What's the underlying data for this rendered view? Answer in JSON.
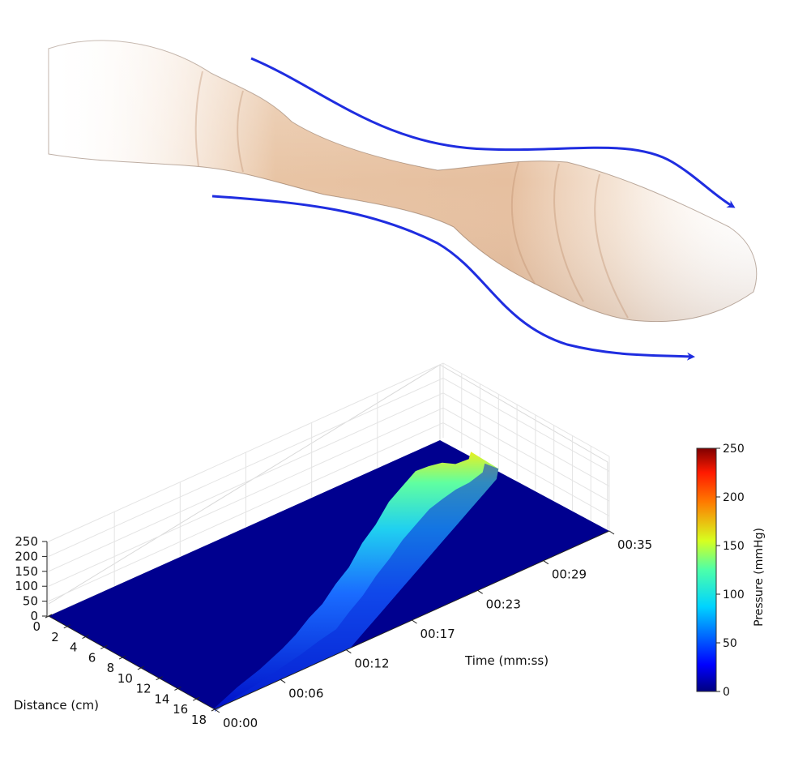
{
  "illustration": {
    "flow_color": "#1f2de0",
    "tissue_color": "#e9c7a8"
  },
  "chart_data": {
    "type": "surface3d",
    "title": "",
    "x_label": "Time (mm:ss)",
    "y_label": "Distance (cm)",
    "colorbar_label": "Pressure (mmHg)",
    "x_tick_labels": [
      "00:00",
      "00:06",
      "00:12",
      "00:17",
      "00:23",
      "00:29",
      "00:35"
    ],
    "y_tick_labels": [
      "0",
      "2",
      "4",
      "6",
      "8",
      "10",
      "12",
      "14",
      "16",
      "18"
    ],
    "z_tick_labels": [
      "0",
      "50",
      "100",
      "150",
      "200",
      "250"
    ],
    "colorbar_ticks": [
      "0",
      "50",
      "100",
      "150",
      "200",
      "250"
    ],
    "x_range_seconds": [
      0,
      35
    ],
    "y_range": [
      0,
      18
    ],
    "z_range": [
      0,
      250
    ],
    "colormap": "jet",
    "pressure_peak_profile": {
      "time_seconds": [
        0,
        2,
        4,
        6,
        8,
        10,
        12,
        14,
        16,
        18,
        20,
        22,
        24,
        26,
        28,
        30,
        32,
        34,
        35
      ],
      "peak_mmHg": [
        5,
        40,
        70,
        95,
        100,
        95,
        100,
        105,
        120,
        140,
        160,
        175,
        185,
        175,
        150,
        100,
        50,
        15,
        5
      ],
      "peak_distance_cm": [
        18,
        17,
        16,
        15,
        14,
        13,
        12,
        11,
        10,
        9,
        8,
        7,
        6,
        5,
        4,
        3,
        2,
        1,
        0
      ]
    }
  }
}
